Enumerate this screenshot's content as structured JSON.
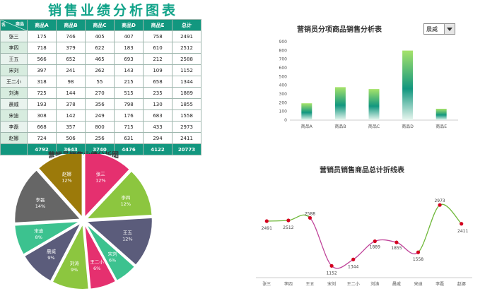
{
  "page": {
    "title": "销售业绩分析图表"
  },
  "table": {
    "corner_top": "商品",
    "corner_bottom": "名",
    "headers": [
      "商品A",
      "商品B",
      "商品C",
      "商品D",
      "商品E",
      "总计"
    ],
    "rows": [
      {
        "name": "张三",
        "values": [
          175,
          746,
          405,
          407,
          758,
          2491
        ]
      },
      {
        "name": "李四",
        "values": [
          718,
          379,
          622,
          183,
          610,
          2512
        ]
      },
      {
        "name": "王五",
        "values": [
          566,
          652,
          465,
          693,
          212,
          2588
        ]
      },
      {
        "name": "宋刘",
        "values": [
          397,
          241,
          262,
          143,
          109,
          1152
        ]
      },
      {
        "name": "王二小",
        "values": [
          318,
          98,
          55,
          215,
          658,
          1344
        ]
      },
      {
        "name": "刘涛",
        "values": [
          725,
          144,
          270,
          515,
          235,
          1889
        ]
      },
      {
        "name": "晨威",
        "values": [
          193,
          378,
          356,
          798,
          130,
          1855
        ]
      },
      {
        "name": "宋迪",
        "values": [
          308,
          142,
          249,
          176,
          683,
          1558
        ]
      },
      {
        "name": "李磊",
        "values": [
          668,
          357,
          800,
          715,
          433,
          2973
        ]
      },
      {
        "name": "赵娜",
        "values": [
          724,
          506,
          256,
          631,
          294,
          2411
        ]
      }
    ],
    "totals": [
      4792,
      3643,
      3740,
      4476,
      4122,
      20773
    ]
  },
  "bar_chart": {
    "title": "营销员分项商品销售分析表",
    "dropdown_value": "晨威"
  },
  "pie_chart": {
    "title": "营销员销售业绩分析图"
  },
  "line_chart": {
    "title": "营销员销售商品总计折线表"
  },
  "chart_data": [
    {
      "type": "bar",
      "title": "营销员分项商品销售分析表",
      "categories": [
        "商品A",
        "商品B",
        "商品C",
        "商品D",
        "商品E"
      ],
      "values": [
        193,
        378,
        356,
        798,
        130
      ],
      "ylim": [
        0,
        900
      ],
      "yticks": [
        0,
        100,
        200,
        300,
        400,
        500,
        600,
        700,
        800,
        900
      ],
      "grid": false,
      "color_top": "#a6e36a",
      "color_mid": "#12977f",
      "color_bottom": "#e8f6ef"
    },
    {
      "type": "pie",
      "title": "营销员销售业绩分析图",
      "slices": [
        {
          "label": "张三",
          "pct": "12%",
          "value": 2491,
          "color": "#e5306f"
        },
        {
          "label": "李四",
          "pct": "12%",
          "value": 2512,
          "color": "#8cc63f"
        },
        {
          "label": "王五",
          "pct": "12%",
          "value": 2588,
          "color": "#5b5c7b"
        },
        {
          "label": "宋刘",
          "pct": "6%",
          "value": 1152,
          "color": "#3cc28f"
        },
        {
          "label": "王二小",
          "pct": "6%",
          "value": 1344,
          "color": "#e5306f"
        },
        {
          "label": "刘涛",
          "pct": "9%",
          "value": 1889,
          "color": "#8cc63f"
        },
        {
          "label": "晨威",
          "pct": "9%",
          "value": 1855,
          "color": "#5b5c7b"
        },
        {
          "label": "宋迪",
          "pct": "8%",
          "value": 1558,
          "color": "#3cc28f"
        },
        {
          "label": "李磊",
          "pct": "14%",
          "value": 2973,
          "color": "#666666"
        },
        {
          "label": "赵娜",
          "pct": "12%",
          "value": 2411,
          "color": "#9c7a0a"
        }
      ]
    },
    {
      "type": "line",
      "title": "营销员销售商品总计折线表",
      "categories": [
        "张三",
        "李四",
        "王五",
        "宋刘",
        "王二小",
        "刘涛",
        "晨威",
        "宋迪",
        "李磊",
        "赵娜"
      ],
      "values": [
        2491,
        2512,
        2588,
        1152,
        1344,
        1889,
        1855,
        1558,
        2973,
        2411
      ],
      "ylim": [
        800,
        3400
      ],
      "point_color": "#d4001f",
      "line_color_high": "#6fb83a",
      "line_color_low": "#c0449a"
    }
  ]
}
